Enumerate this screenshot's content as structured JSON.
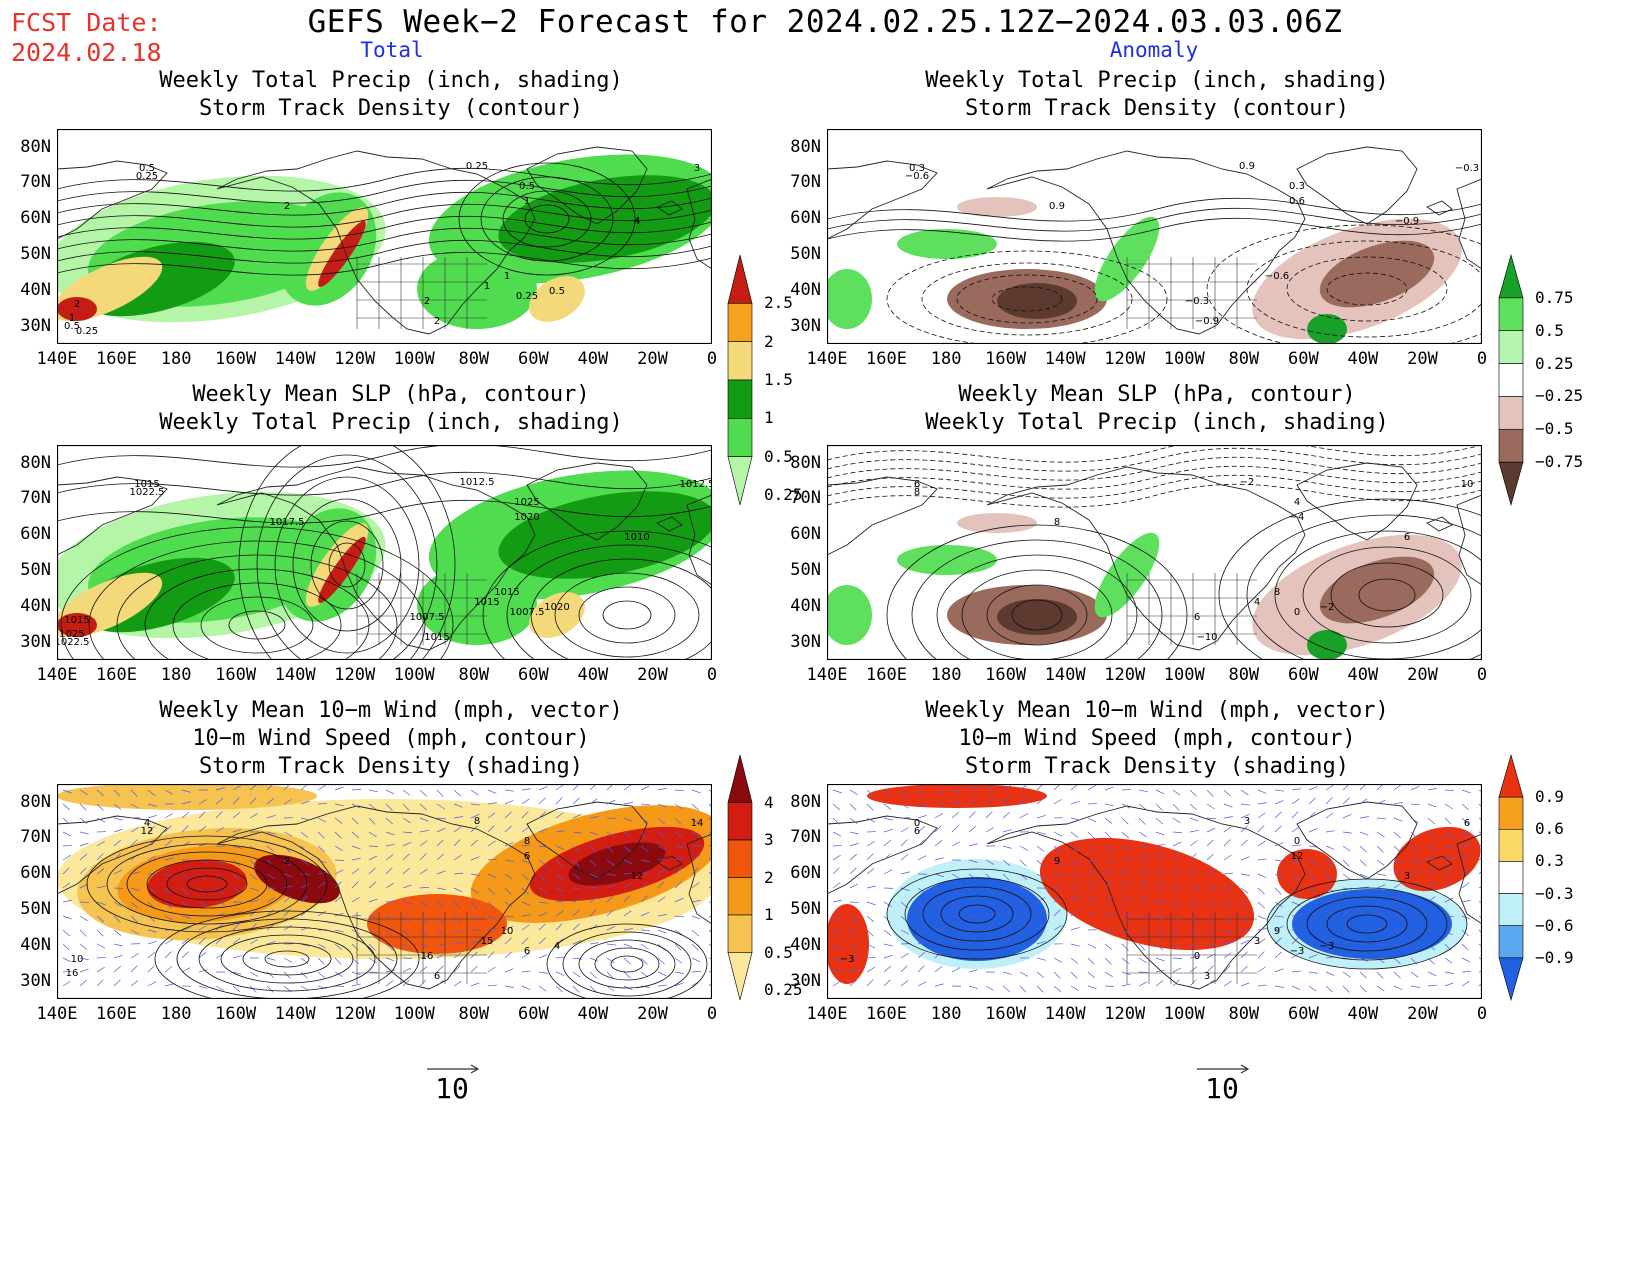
{
  "header": {
    "fcst_label": "FCST Date:",
    "fcst_date": "2024.02.18",
    "title": "GEFS Week−2 Forecast for 2024.02.25.12Z−2024.03.03.06Z",
    "col_left": "Total",
    "col_right": "Anomaly"
  },
  "axes": {
    "lat_ticks": [
      "80N",
      "70N",
      "60N",
      "50N",
      "40N",
      "30N"
    ],
    "lon_ticks": [
      "140E",
      "160E",
      "180",
      "160W",
      "140W",
      "120W",
      "100W",
      "80W",
      "60W",
      "40W",
      "20W",
      "0"
    ]
  },
  "panels": [
    {
      "title1": "Weekly Total Precip (inch, shading)",
      "title2": "Storm Track Density (contour)",
      "title3": ""
    },
    {
      "title1": "Weekly Total Precip (inch, shading)",
      "title2": "Storm Track Density (contour)",
      "title3": ""
    },
    {
      "title1": "Weekly Mean SLP (hPa, contour)",
      "title2": "Weekly Total Precip (inch, shading)",
      "title3": ""
    },
    {
      "title1": "Weekly Mean SLP (hPa, contour)",
      "title2": "Weekly Total Precip (inch, shading)",
      "title3": ""
    },
    {
      "title1": "Weekly Mean 10−m Wind (mph, vector)",
      "title2": "10−m Wind Speed (mph, contour)",
      "title3": "Storm Track Density (shading)"
    },
    {
      "title1": "Weekly Mean 10−m Wind (mph, vector)",
      "title2": "10−m Wind Speed (mph, contour)",
      "title3": "Storm Track Density (shading)"
    }
  ],
  "colorbars": {
    "precip_total": {
      "labels": [
        "2.5",
        "2",
        "1.5",
        "1",
        "0.5",
        "0.25"
      ],
      "colors": [
        "#c41e14",
        "#f5a21e",
        "#f3d97a",
        "#139b13",
        "#4fdc4f",
        "#b4f5a8"
      ]
    },
    "precip_anom": {
      "labels": [
        "0.75",
        "0.5",
        "0.25",
        "−0.25",
        "−0.5",
        "−0.75"
      ],
      "colors": [
        "#18a028",
        "#5ee05e",
        "#b6f5b0",
        "#ffffff",
        "#e3c3bc",
        "#9a6a5c",
        "#5c3a30"
      ]
    },
    "storm_total": {
      "labels": [
        "4",
        "3",
        "2",
        "1",
        "0.5",
        "0.25"
      ],
      "colors": [
        "#8b0a10",
        "#d21e12",
        "#f0560e",
        "#f49a18",
        "#f6c250",
        "#fbe89a"
      ]
    },
    "storm_anom": {
      "labels": [
        "0.9",
        "0.6",
        "0.3",
        "−0.3",
        "−0.6",
        "−0.9"
      ],
      "colors": [
        "#e83214",
        "#f5a01c",
        "#fad966",
        "#ffffff",
        "#bff0f8",
        "#5aa8f0",
        "#2160e0"
      ]
    }
  },
  "ref_vector": {
    "label": "10"
  },
  "contour_labels": {
    "p1": [
      "0.5",
      "0.25",
      "0.25",
      "0.5",
      "1",
      "2",
      "2",
      "3",
      "4",
      "1",
      "2",
      "1",
      "0.25",
      "0.5",
      "2",
      "1",
      "0.5",
      "0.25"
    ],
    "p2": [
      "0.3",
      "−0.6",
      "0.9",
      "0.3",
      "0.6",
      "0.9",
      "−0.9",
      "−0.3",
      "−0.9",
      "−0.6",
      "−0.3"
    ],
    "p3": [
      "1015",
      "1022.5",
      "1012.5",
      "1025",
      "1020",
      "1017.5",
      "1015",
      "1012.5",
      "1010",
      "1015",
      "1007.5",
      "1015",
      "1007.5",
      "1020",
      "1015",
      "1025",
      "1022.5"
    ],
    "p4": [
      "6",
      "8",
      "−2",
      "4",
      "−4",
      "8",
      "−10",
      "10",
      "6",
      "8",
      "6",
      "4",
      "0",
      "−2"
    ],
    "p5": [
      "4",
      "12",
      "8",
      "8",
      "6",
      "2",
      "6",
      "14",
      "12",
      "10",
      "16",
      "15",
      "6",
      "4",
      "10",
      "16"
    ],
    "p6": [
      "0",
      "6",
      "3",
      "0",
      "12",
      "9",
      "3",
      "6",
      "3",
      "9",
      "0",
      "3",
      "−3",
      "−3",
      "−3"
    ]
  }
}
